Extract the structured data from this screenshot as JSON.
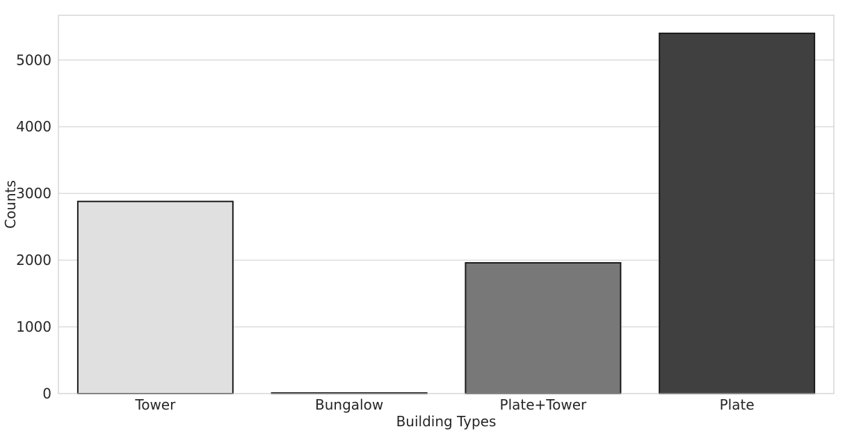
{
  "chart_data": {
    "type": "bar",
    "title": "",
    "xlabel": "Building Types",
    "ylabel": "Counts",
    "categories": [
      "Tower",
      "Bungalow",
      "Plate+Tower",
      "Plate"
    ],
    "values": [
      2880,
      10,
      1960,
      5400
    ],
    "colors": [
      "#e0e0e0",
      "#ffffff",
      "#787878",
      "#404040"
    ],
    "edge_color": "#1a1a1a",
    "ylim": [
      0,
      5670
    ],
    "yticks": [
      0,
      1000,
      2000,
      3000,
      4000,
      5000
    ],
    "grid": "y",
    "legend": "none"
  }
}
